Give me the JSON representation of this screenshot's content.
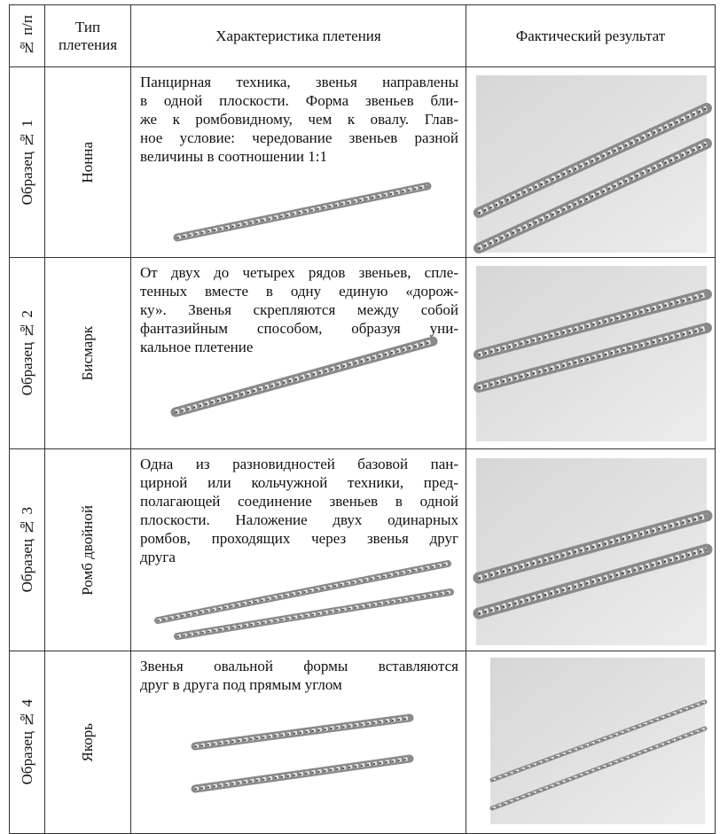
{
  "header": {
    "number": "№ п/п",
    "type": "Тип плетения",
    "description": "Характеристика плетения",
    "result": "Фактический результат"
  },
  "rows": [
    {
      "sample": "Образец № 1",
      "type": "Нонна",
      "description": [
        "Панцирная техника, звенья направлены",
        "в одной плоскости. Форма звеньев бли-",
        "же к ромбовидному, чем к овалу. Глав-",
        "ное условие: чередование звеньев разной",
        "величины в соотношении 1:1"
      ]
    },
    {
      "sample": "Образец № 2",
      "type": "Бисмарк",
      "description": [
        "От двух до четырех рядов звеньев, спле-",
        "тенных вместе в одну единую «дорож-",
        "ку». Звенья скрепляются между собой",
        "фантазийным способом, образуя уни-",
        "кальное плетение"
      ]
    },
    {
      "sample": "Образец № 3",
      "type": "Ромб двойной",
      "description": [
        "Одна из разновидностей базовой пан-",
        "цирной или кольчужной техники, пред-",
        "полагающей соединение звеньев в одной",
        "плоскости. Наложение двух одинарных",
        "ромбов, проходящих через звенья друг",
        "друга"
      ]
    },
    {
      "sample": "Образец № 4",
      "type": "Якорь",
      "description": [
        "Звенья овальной формы вставляются",
        "друг в друга под прямым углом"
      ]
    }
  ]
}
